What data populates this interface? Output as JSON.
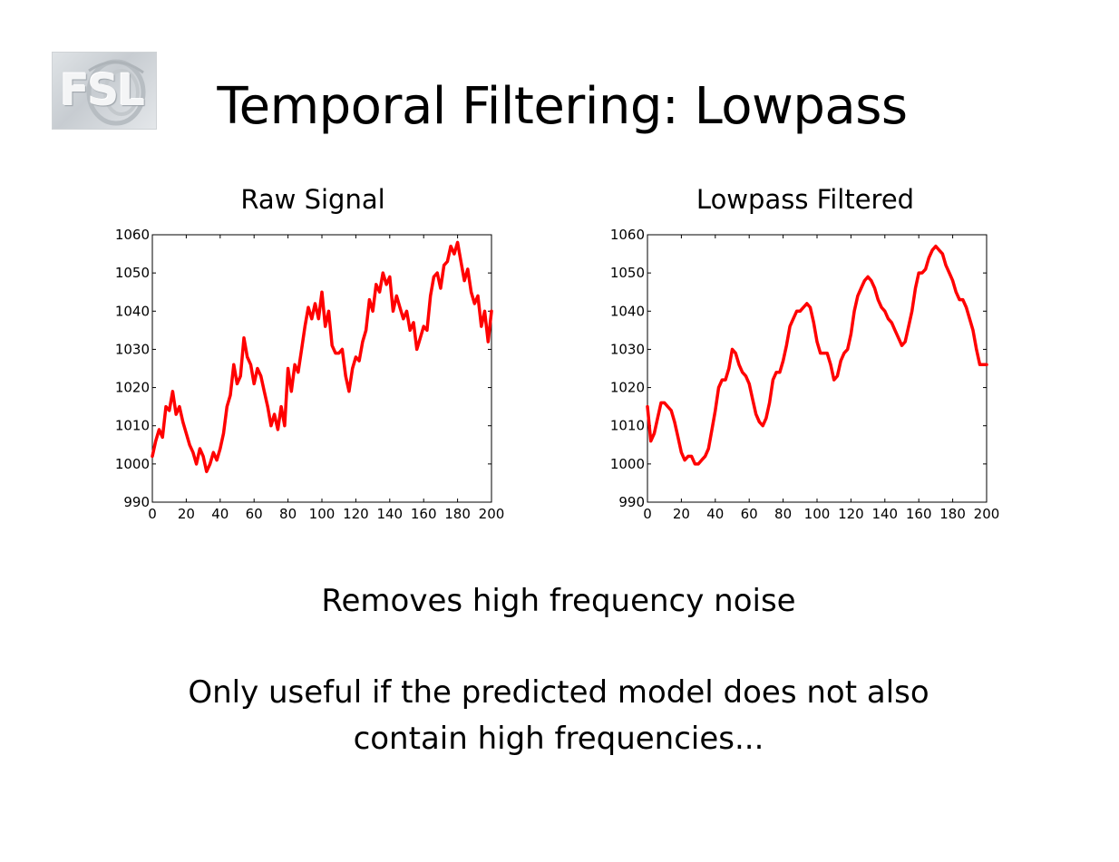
{
  "slide": {
    "title": "Temporal Filtering: Lowpass",
    "logo_text": "FSL",
    "body_line1": "Removes high frequency noise",
    "body_line2": "Only useful if the predicted model does not also",
    "body_line3": "contain high frequencies..."
  },
  "chart_data": [
    {
      "type": "line",
      "title": "Raw Signal",
      "xlabel": "",
      "ylabel": "",
      "xlim": [
        0,
        200
      ],
      "ylim": [
        990,
        1060
      ],
      "xticks": [
        0,
        20,
        40,
        60,
        80,
        100,
        120,
        140,
        160,
        180,
        200
      ],
      "yticks": [
        990,
        1000,
        1010,
        1020,
        1030,
        1040,
        1050,
        1060
      ],
      "grid": false,
      "line_color": "#ff0000",
      "series": [
        {
          "x": [
            0,
            2,
            4,
            6,
            8,
            10,
            12,
            14,
            16,
            18,
            20,
            22,
            24,
            26,
            28,
            30,
            32,
            34,
            36,
            38,
            40,
            42,
            44,
            46,
            48,
            50,
            52,
            54,
            56,
            58,
            60,
            62,
            64,
            66,
            68,
            70,
            72,
            74,
            76,
            78,
            80,
            82,
            84,
            86,
            88,
            90,
            92,
            94,
            96,
            98,
            100,
            102,
            104,
            106,
            108,
            110,
            112,
            114,
            116,
            118,
            120,
            122,
            124,
            126,
            128,
            130,
            132,
            134,
            136,
            138,
            140,
            142,
            144,
            146,
            148,
            150,
            152,
            154,
            156,
            158,
            160,
            162,
            164,
            166,
            168,
            170,
            172,
            174,
            176,
            178,
            180,
            182,
            184,
            186,
            188,
            190,
            192,
            194,
            196,
            198,
            200
          ],
          "y": [
            1002,
            1006,
            1009,
            1007,
            1015,
            1014,
            1019,
            1013,
            1015,
            1011,
            1008,
            1005,
            1003,
            1000,
            1004,
            1002,
            998,
            1000,
            1003,
            1001,
            1004,
            1008,
            1015,
            1018,
            1026,
            1021,
            1023,
            1033,
            1028,
            1026,
            1021,
            1025,
            1023,
            1019,
            1015,
            1010,
            1013,
            1009,
            1015,
            1010,
            1025,
            1019,
            1026,
            1024,
            1030,
            1036,
            1041,
            1038,
            1042,
            1038,
            1045,
            1036,
            1040,
            1031,
            1029,
            1029,
            1030,
            1023,
            1019,
            1025,
            1028,
            1027,
            1032,
            1035,
            1043,
            1040,
            1047,
            1045,
            1050,
            1047,
            1049,
            1040,
            1044,
            1041,
            1038,
            1040,
            1035,
            1037,
            1030,
            1033,
            1036,
            1035,
            1044,
            1049,
            1050,
            1046,
            1052,
            1053,
            1057,
            1055,
            1058,
            1053,
            1048,
            1051,
            1045,
            1042,
            1044,
            1036,
            1040,
            1032,
            1040
          ]
        }
      ]
    },
    {
      "type": "line",
      "title": "Lowpass Filtered",
      "xlabel": "",
      "ylabel": "",
      "xlim": [
        0,
        200
      ],
      "ylim": [
        990,
        1060
      ],
      "xticks": [
        0,
        20,
        40,
        60,
        80,
        100,
        120,
        140,
        160,
        180,
        200
      ],
      "yticks": [
        990,
        1000,
        1010,
        1020,
        1030,
        1040,
        1050,
        1060
      ],
      "grid": false,
      "line_color": "#ff0000",
      "series": [
        {
          "x": [
            0,
            2,
            4,
            6,
            8,
            10,
            12,
            14,
            16,
            18,
            20,
            22,
            24,
            26,
            28,
            30,
            32,
            34,
            36,
            38,
            40,
            42,
            44,
            46,
            48,
            50,
            52,
            54,
            56,
            58,
            60,
            62,
            64,
            66,
            68,
            70,
            72,
            74,
            76,
            78,
            80,
            82,
            84,
            86,
            88,
            90,
            92,
            94,
            96,
            98,
            100,
            102,
            104,
            106,
            108,
            110,
            112,
            114,
            116,
            118,
            120,
            122,
            124,
            126,
            128,
            130,
            132,
            134,
            136,
            138,
            140,
            142,
            144,
            146,
            148,
            150,
            152,
            154,
            156,
            158,
            160,
            162,
            164,
            166,
            168,
            170,
            172,
            174,
            176,
            178,
            180,
            182,
            184,
            186,
            188,
            190,
            192,
            194,
            196,
            198,
            200
          ],
          "y": [
            1015,
            1006,
            1008,
            1012,
            1016,
            1016,
            1015,
            1014,
            1011,
            1007,
            1003,
            1001,
            1002,
            1002,
            1000,
            1000,
            1001,
            1002,
            1004,
            1009,
            1014,
            1020,
            1022,
            1022,
            1025,
            1030,
            1029,
            1026,
            1024,
            1023,
            1021,
            1017,
            1013,
            1011,
            1010,
            1012,
            1016,
            1022,
            1024,
            1024,
            1027,
            1031,
            1036,
            1038,
            1040,
            1040,
            1041,
            1042,
            1041,
            1037,
            1032,
            1029,
            1029,
            1029,
            1026,
            1022,
            1023,
            1027,
            1029,
            1030,
            1034,
            1040,
            1044,
            1046,
            1048,
            1049,
            1048,
            1046,
            1043,
            1041,
            1040,
            1038,
            1037,
            1035,
            1033,
            1031,
            1032,
            1036,
            1040,
            1046,
            1050,
            1050,
            1051,
            1054,
            1056,
            1057,
            1056,
            1055,
            1052,
            1050,
            1048,
            1045,
            1043,
            1043,
            1041,
            1038,
            1035,
            1030,
            1026,
            1026,
            1026
          ]
        }
      ]
    }
  ]
}
